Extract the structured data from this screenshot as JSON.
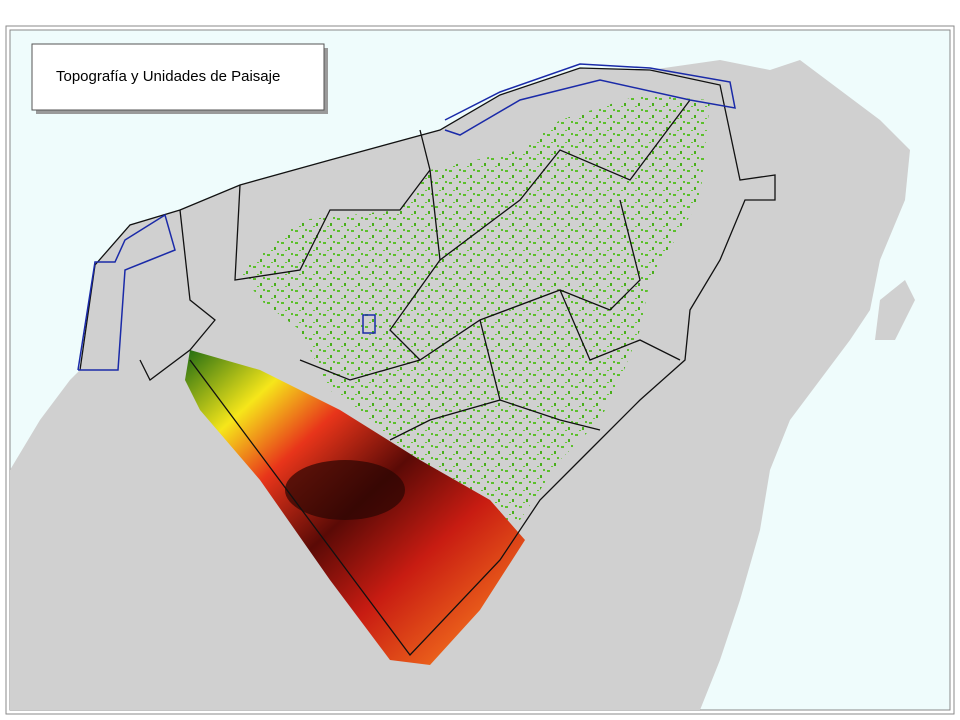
{
  "title": "Topografía y Unidades de Paisaje"
}
